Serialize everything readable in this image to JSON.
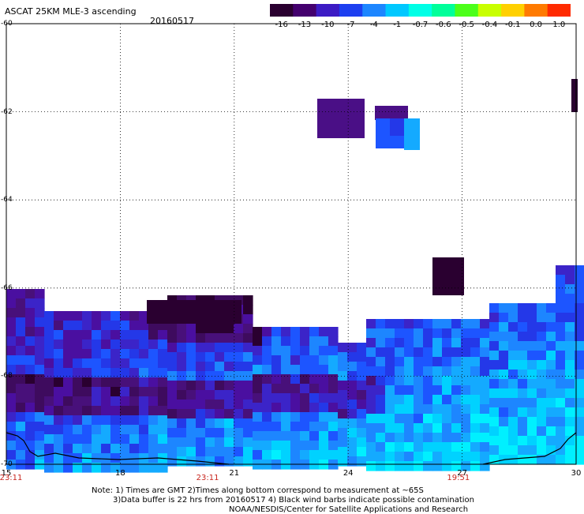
{
  "header": {
    "title": "ASCAT 25KM MLE-3 ascending",
    "date": "20160517"
  },
  "colorbar": {
    "labels": [
      "-16",
      "-13",
      "-10",
      "-7",
      "-4",
      "-1",
      "-0.7",
      "-0.6",
      "-0.5",
      "-0.4",
      "-0.1",
      "0.0",
      "1.0"
    ],
    "colors": [
      "#2a0030",
      "#44006e",
      "#3c1bc4",
      "#1d3ff0",
      "#1d86ff",
      "#00c8ff",
      "#00ffe6",
      "#00ff9a",
      "#4cff1a",
      "#c8ff00",
      "#ffd000",
      "#ff7a00",
      "#ff2a00"
    ]
  },
  "axes": {
    "lat_labels": [
      {
        "text": "-60",
        "lat": -60
      },
      {
        "text": "-62",
        "lat": -62
      },
      {
        "text": "-64",
        "lat": -64
      },
      {
        "text": "-66",
        "lat": -66
      },
      {
        "text": "-68",
        "lat": -68
      },
      {
        "text": "-70",
        "lat": -70
      }
    ],
    "lon_labels": [
      {
        "text": "15",
        "lon": 15
      },
      {
        "text": "18",
        "lon": 18
      },
      {
        "text": "21",
        "lon": 21
      },
      {
        "text": "24",
        "lon": 24
      },
      {
        "text": "27",
        "lon": 27
      },
      {
        "text": "30",
        "lon": 30
      }
    ],
    "lon_range": [
      15,
      30
    ],
    "lat_range": [
      -60,
      -70
    ],
    "grid": true
  },
  "pass_times": [
    {
      "text": "23:11",
      "lon": 15
    },
    {
      "text": "23:11",
      "lon": 20.3
    },
    {
      "text": "19:51",
      "lon": 26.9
    }
  ],
  "notes": [
    "Note: 1) Times are GMT 2)Times along bottom correspond to measurement at ~65S",
    "3)Data buffer is 22 hrs from 20160517 4) Black wind barbs indicate possible contamination",
    "NOAA/NESDIS/Center for Satellite Applications and Research"
  ]
}
